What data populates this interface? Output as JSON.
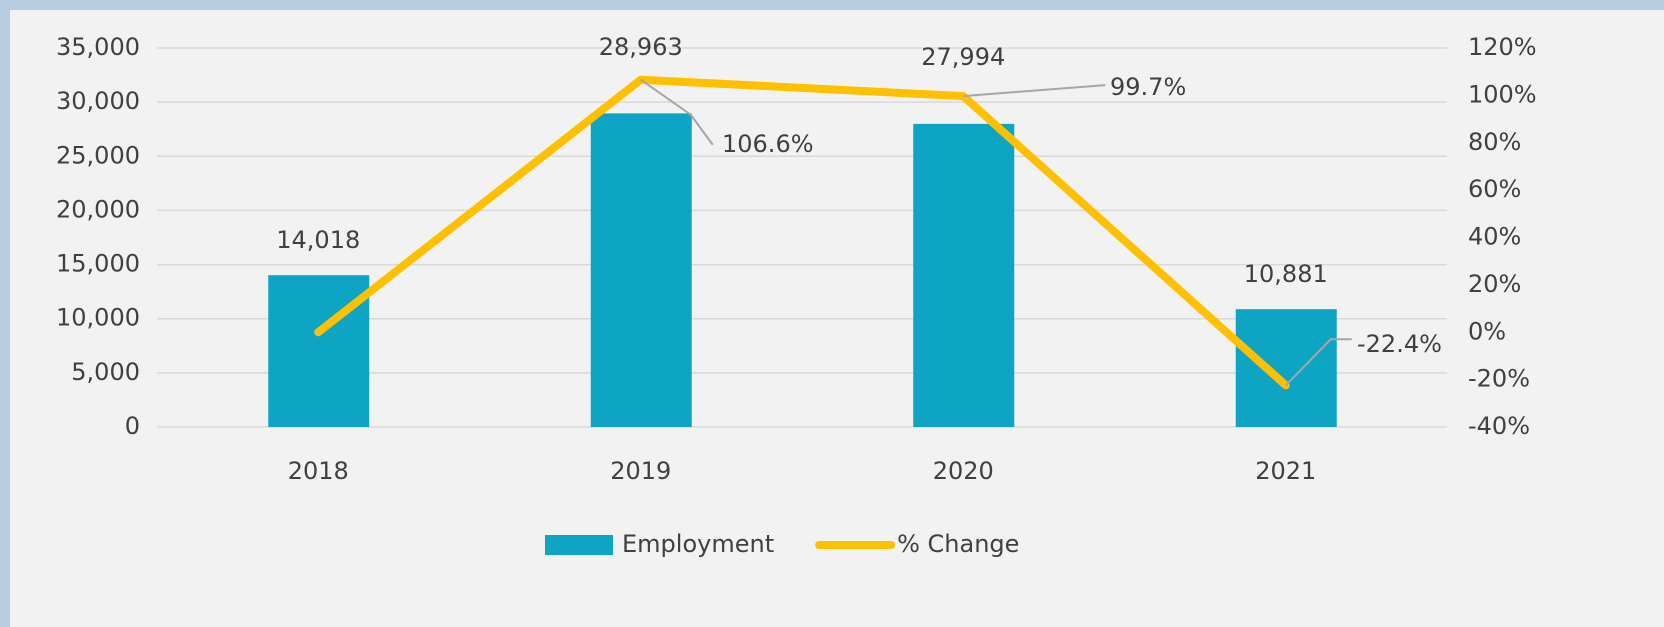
{
  "chart_data": {
    "type": "bar",
    "categories": [
      "2018",
      "2019",
      "2020",
      "2021"
    ],
    "series": [
      {
        "name": "Employment",
        "type": "bar",
        "color": "#0ea5c4",
        "values": [
          14018,
          28963,
          27994,
          10881
        ],
        "value_labels": [
          "14,018",
          "28,963",
          "27,994",
          "10,881"
        ]
      },
      {
        "name": "% Change",
        "type": "line",
        "axis": "y2",
        "color": "#ffc000",
        "values": [
          0,
          106.6,
          99.7,
          -22.4
        ],
        "value_labels": [
          null,
          "106.6%",
          "99.7%",
          "-22.4%"
        ]
      }
    ],
    "ylim": [
      0,
      35000
    ],
    "yticks": [
      0,
      {
        "value": 5000,
        "label": "5,000"
      },
      {
        "value": 10000,
        "label": "10,000"
      },
      {
        "value": 15000,
        "label": "15,000"
      },
      {
        "value": 20000,
        "label": "20,000"
      },
      {
        "value": 25000,
        "label": "25,000"
      },
      {
        "value": 30000,
        "label": "30,000"
      },
      {
        "value": 35000,
        "label": "35,000"
      }
    ],
    "y2lim": [
      -40,
      120
    ],
    "y2ticks": [
      {
        "value": -40,
        "label": "-40%"
      },
      {
        "value": -20,
        "label": "-20%"
      },
      {
        "value": 0,
        "label": "0%"
      },
      {
        "value": 20,
        "label": "20%"
      },
      {
        "value": 40,
        "label": "40%"
      },
      {
        "value": 60,
        "label": "60%"
      },
      {
        "value": 80,
        "label": "80%"
      },
      {
        "value": 100,
        "label": "100%"
      },
      {
        "value": 120,
        "label": "120%"
      }
    ],
    "grid": true,
    "legend": "bottom"
  }
}
